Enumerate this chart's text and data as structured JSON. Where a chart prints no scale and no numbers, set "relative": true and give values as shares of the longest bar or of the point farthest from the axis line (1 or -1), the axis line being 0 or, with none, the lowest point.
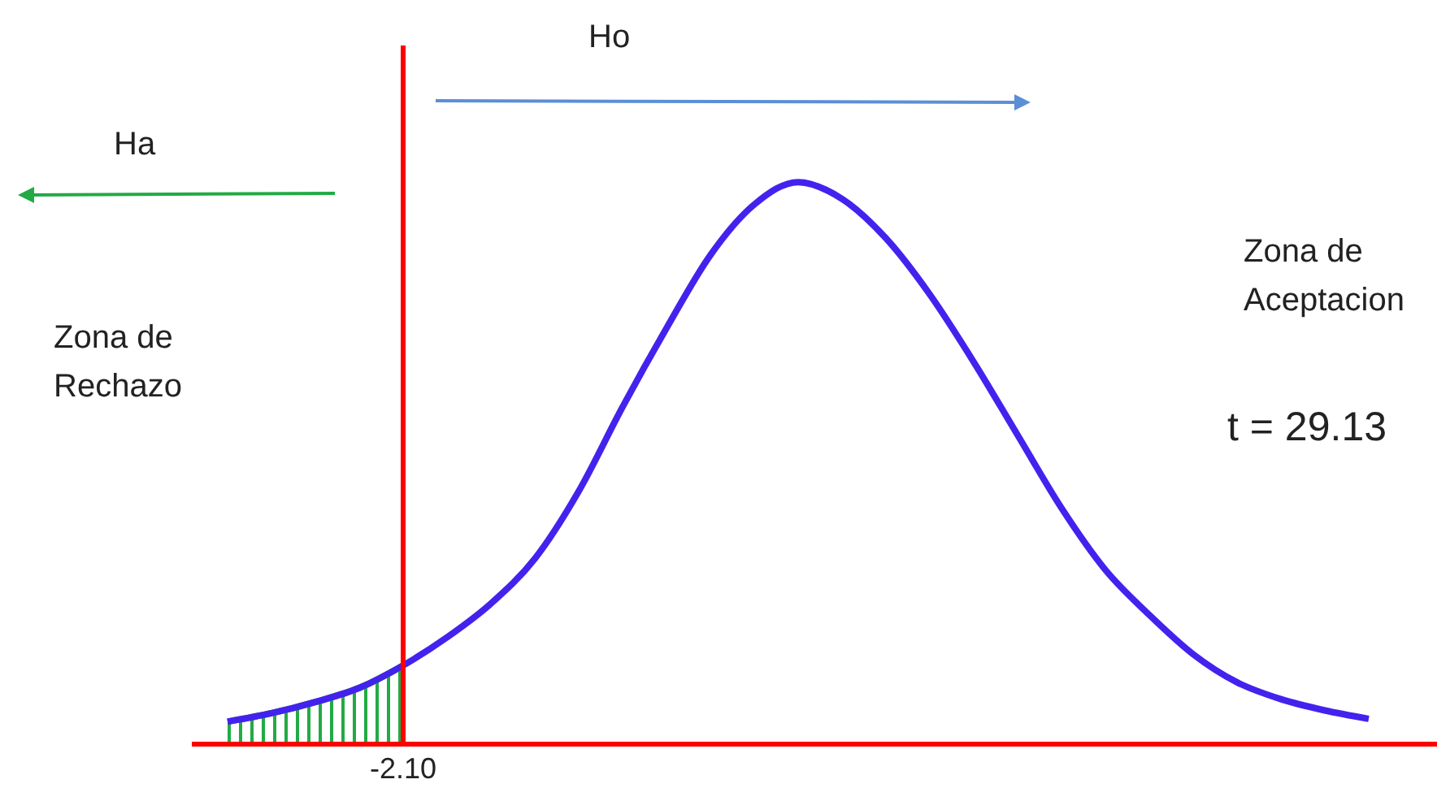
{
  "chart_data": {
    "type": "line",
    "relative": true,
    "marker": "none",
    "line_style": "solid",
    "categories": [
      null,
      null,
      null,
      null,
      null,
      null,
      null,
      null,
      null,
      null,
      null,
      null,
      null,
      null,
      null,
      null,
      null,
      null,
      null,
      null,
      null,
      null,
      null,
      null,
      null,
      null,
      null
    ],
    "series": [
      {
        "color": "#4422ee",
        "values": [
          0.04,
          0.055,
          0.075,
          0.1,
          0.14,
          0.19,
          0.25,
          0.33,
          0.45,
          0.6,
          0.74,
          0.87,
          0.96,
          1.0,
          0.97,
          0.9,
          0.8,
          0.68,
          0.55,
          0.42,
          0.31,
          0.23,
          0.16,
          0.11,
          0.08,
          0.06,
          0.045
        ]
      },
      {
        "type": "area",
        "color": "#22aa44",
        "values": [
          0.04,
          0.055,
          0.075,
          0.1,
          0.14,
          null,
          null,
          null,
          null,
          null,
          null,
          null,
          null,
          null,
          null,
          null,
          null,
          null,
          null,
          null,
          null,
          null,
          null,
          null,
          null,
          null,
          null
        ]
      }
    ],
    "ref_lines": [
      {
        "axis": "x",
        "value": "-2.10",
        "color": "#ff0000"
      }
    ],
    "annotations": [
      "Ho",
      "Ha",
      "Zona de Rechazo",
      "Zona de Aceptacion",
      "t = 29.13"
    ]
  }
}
